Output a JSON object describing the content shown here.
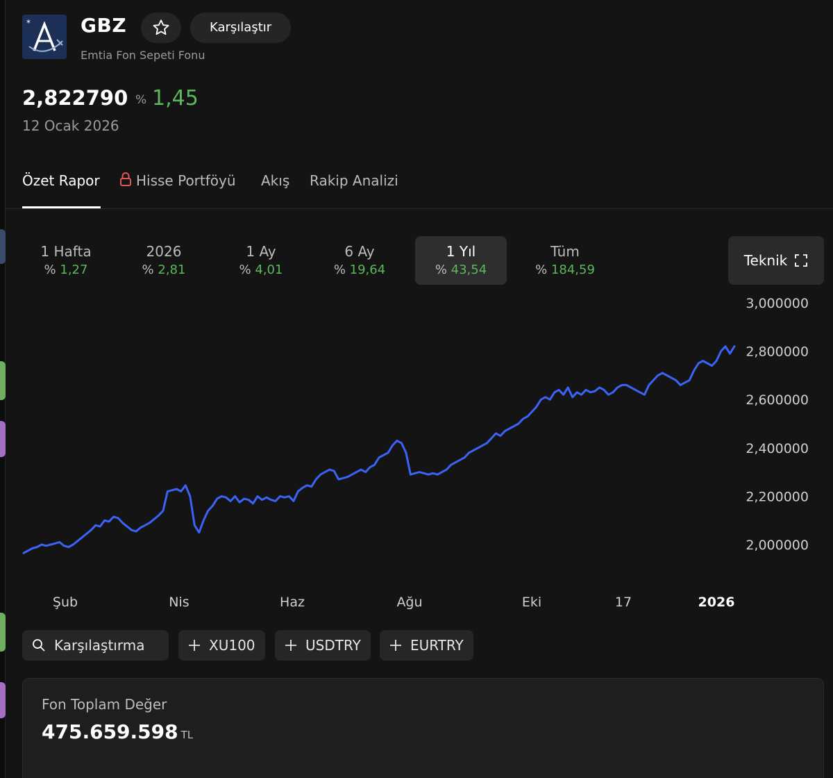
{
  "fund": {
    "ticker": "GBZ",
    "name": "Emtia Fon Sepeti Fonu",
    "compare_label": "Karşılaştır",
    "price": "2,822790",
    "change_prefix": "%",
    "change": "1,45",
    "date": "12 Ocak 2026"
  },
  "tabs": [
    {
      "label": "Özet Rapor",
      "active": true
    },
    {
      "label": "Hisse Portföyü",
      "locked": true
    },
    {
      "label": "Akış"
    },
    {
      "label": "Rakip Analizi"
    }
  ],
  "periods": [
    {
      "label": "1 Hafta",
      "prefix": "%",
      "change": "1,27"
    },
    {
      "label": "2026",
      "prefix": "%",
      "change": "2,81"
    },
    {
      "label": "1 Ay",
      "prefix": "%",
      "change": "4,01"
    },
    {
      "label": "6 Ay",
      "prefix": "%",
      "change": "19,64"
    },
    {
      "label": "1 Yıl",
      "prefix": "%",
      "change": "43,54",
      "active": true
    },
    {
      "label": "Tüm",
      "prefix": "%",
      "change": "184,59"
    }
  ],
  "teknik_label": "Teknik",
  "chart_data": {
    "type": "line",
    "x_ticks": [
      "Şub",
      "Nis",
      "Haz",
      "Ağu",
      "Eki",
      "17",
      "2026"
    ],
    "y_ticks": [
      "3,000000",
      "2,800000",
      "2,600000",
      "2,400000",
      "2,200000",
      "2,000000"
    ],
    "ylim": [
      2.0,
      3.0
    ],
    "line_color": "#3b63f5",
    "series": [
      {
        "values": [
          1.965,
          1.975,
          1.985,
          1.99,
          2.0,
          1.995,
          2.0,
          2.005,
          2.01,
          1.995,
          1.99,
          2.0,
          2.015,
          2.03,
          2.045,
          2.06,
          2.08,
          2.075,
          2.1,
          2.095,
          2.115,
          2.11,
          2.09,
          2.075,
          2.06,
          2.055,
          2.07,
          2.08,
          2.09,
          2.105,
          2.12,
          2.14,
          2.22,
          2.225,
          2.23,
          2.22,
          2.245,
          2.2,
          2.08,
          2.05,
          2.1,
          2.14,
          2.16,
          2.19,
          2.2,
          2.195,
          2.18,
          2.2,
          2.175,
          2.19,
          2.185,
          2.17,
          2.2,
          2.185,
          2.195,
          2.185,
          2.18,
          2.2,
          2.195,
          2.2,
          2.18,
          2.22,
          2.235,
          2.245,
          2.24,
          2.27,
          2.29,
          2.3,
          2.31,
          2.305,
          2.27,
          2.275,
          2.28,
          2.29,
          2.3,
          2.31,
          2.3,
          2.32,
          2.33,
          2.36,
          2.37,
          2.38,
          2.41,
          2.43,
          2.42,
          2.38,
          2.29,
          2.295,
          2.3,
          2.295,
          2.29,
          2.295,
          2.29,
          2.3,
          2.31,
          2.33,
          2.34,
          2.35,
          2.36,
          2.38,
          2.39,
          2.4,
          2.41,
          2.42,
          2.44,
          2.46,
          2.45,
          2.47,
          2.48,
          2.49,
          2.5,
          2.52,
          2.53,
          2.55,
          2.57,
          2.6,
          2.61,
          2.6,
          2.63,
          2.64,
          2.62,
          2.65,
          2.61,
          2.63,
          2.62,
          2.64,
          2.63,
          2.635,
          2.65,
          2.64,
          2.62,
          2.63,
          2.65,
          2.66,
          2.66,
          2.65,
          2.64,
          2.63,
          2.62,
          2.66,
          2.68,
          2.7,
          2.71,
          2.7,
          2.69,
          2.68,
          2.66,
          2.67,
          2.68,
          2.72,
          2.75,
          2.76,
          2.75,
          2.74,
          2.76,
          2.8,
          2.82,
          2.79,
          2.82
        ]
      }
    ]
  },
  "chips": [
    {
      "label": "Karşılaştırma",
      "icon": "search-icon"
    },
    {
      "label": "XU100",
      "icon": "plus-icon"
    },
    {
      "label": "USDTRY",
      "icon": "plus-icon"
    },
    {
      "label": "EURTRY",
      "icon": "plus-icon"
    }
  ],
  "card": {
    "title": "Fon Toplam Değer",
    "value": "475.659.598",
    "unit": "TL"
  },
  "colors": {
    "background": "#141414",
    "positive": "#5cb85c",
    "accent": "#3b63f5"
  }
}
